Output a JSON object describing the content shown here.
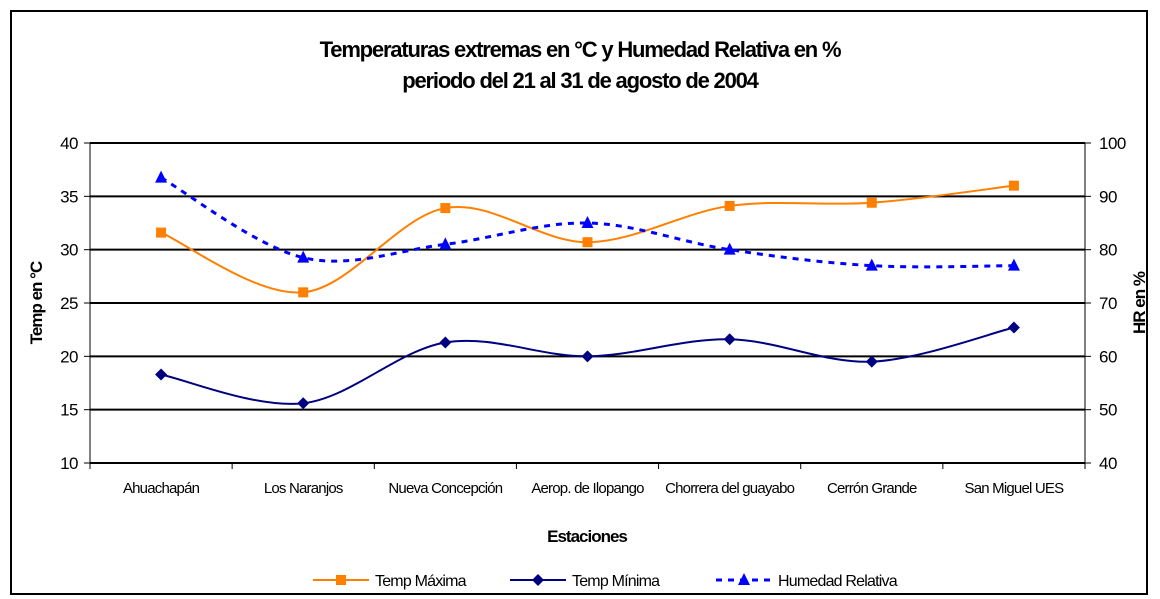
{
  "chart_data": {
    "type": "line",
    "title": "Temperaturas extremas en °C y Humedad Relativa en %",
    "subtitle": "periodo del 21 al 31 de agosto de 2004",
    "xlabel": "Estaciones",
    "ylabel": "Temp en °C",
    "ylabel_right": "HR en %",
    "categories": [
      "Ahuachapán",
      "Los Naranjos",
      "Nueva Concepción",
      "Aerop. de Ilopango",
      "Chorrera del guayabo",
      "Cerrón Grande",
      "San Miguel UES"
    ],
    "ylim": [
      10,
      40
    ],
    "yticks": [
      "10",
      "15",
      "20",
      "25",
      "30",
      "35",
      "40"
    ],
    "ylim_right": [
      40,
      100
    ],
    "yticks_right": [
      "40",
      "50",
      "60",
      "70",
      "80",
      "90",
      "100"
    ],
    "grid": true,
    "legend_position": "bottom",
    "series": [
      {
        "name": "Temp Máxima",
        "axis": "left",
        "color": "#ff7f00",
        "marker": "square",
        "dash": "solid",
        "values": [
          31.6,
          26.0,
          33.9,
          30.7,
          34.1,
          34.4,
          36.0
        ]
      },
      {
        "name": "Temp Mínima",
        "axis": "left",
        "color": "#000080",
        "marker": "diamond",
        "dash": "solid",
        "values": [
          18.3,
          15.6,
          21.3,
          20.0,
          21.6,
          19.5,
          22.7
        ]
      },
      {
        "name": "Humedad Relativa",
        "axis": "right",
        "color": "#0000ff",
        "marker": "triangle",
        "dash": "dashed",
        "values": [
          93.5,
          78.5,
          81.0,
          85.0,
          80.0,
          77.0,
          77.0
        ]
      }
    ]
  }
}
